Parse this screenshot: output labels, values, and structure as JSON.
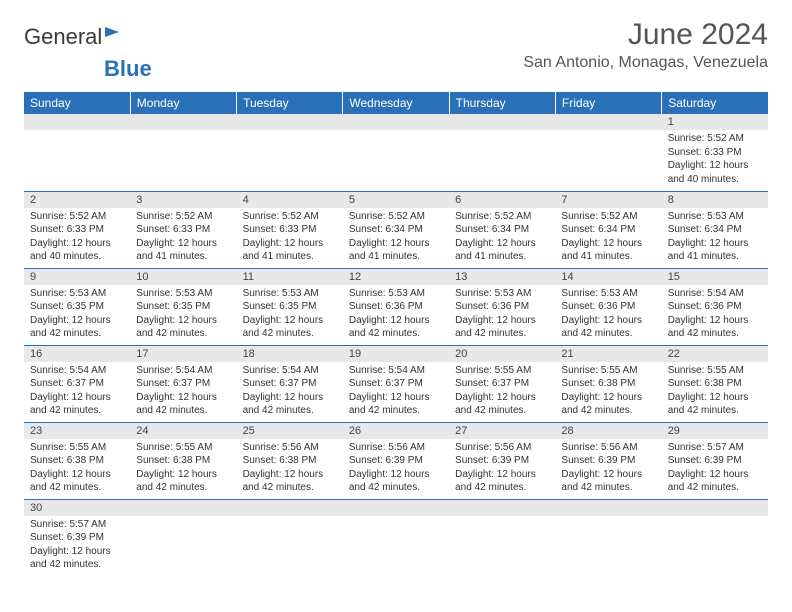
{
  "logo": {
    "text1": "General",
    "text2": "Blue"
  },
  "title": "June 2024",
  "location": "San Antonio, Monagas, Venezuela",
  "colors": {
    "header_bg": "#2a70b8",
    "header_text": "#ffffff",
    "daynum_bg": "#e8e8e8",
    "border": "#2a70b8",
    "text": "#333333",
    "title_text": "#555555"
  },
  "fonts": {
    "title_size": 30,
    "location_size": 16,
    "dayheader_size": 12,
    "daynum_size": 11,
    "dayinfo_size": 10
  },
  "day_headers": [
    "Sunday",
    "Monday",
    "Tuesday",
    "Wednesday",
    "Thursday",
    "Friday",
    "Saturday"
  ],
  "weeks": [
    [
      null,
      null,
      null,
      null,
      null,
      null,
      {
        "n": "1",
        "sunrise": "5:52 AM",
        "sunset": "6:33 PM",
        "daylight": "12 hours and 40 minutes."
      }
    ],
    [
      {
        "n": "2",
        "sunrise": "5:52 AM",
        "sunset": "6:33 PM",
        "daylight": "12 hours and 40 minutes."
      },
      {
        "n": "3",
        "sunrise": "5:52 AM",
        "sunset": "6:33 PM",
        "daylight": "12 hours and 41 minutes."
      },
      {
        "n": "4",
        "sunrise": "5:52 AM",
        "sunset": "6:33 PM",
        "daylight": "12 hours and 41 minutes."
      },
      {
        "n": "5",
        "sunrise": "5:52 AM",
        "sunset": "6:34 PM",
        "daylight": "12 hours and 41 minutes."
      },
      {
        "n": "6",
        "sunrise": "5:52 AM",
        "sunset": "6:34 PM",
        "daylight": "12 hours and 41 minutes."
      },
      {
        "n": "7",
        "sunrise": "5:52 AM",
        "sunset": "6:34 PM",
        "daylight": "12 hours and 41 minutes."
      },
      {
        "n": "8",
        "sunrise": "5:53 AM",
        "sunset": "6:34 PM",
        "daylight": "12 hours and 41 minutes."
      }
    ],
    [
      {
        "n": "9",
        "sunrise": "5:53 AM",
        "sunset": "6:35 PM",
        "daylight": "12 hours and 42 minutes."
      },
      {
        "n": "10",
        "sunrise": "5:53 AM",
        "sunset": "6:35 PM",
        "daylight": "12 hours and 42 minutes."
      },
      {
        "n": "11",
        "sunrise": "5:53 AM",
        "sunset": "6:35 PM",
        "daylight": "12 hours and 42 minutes."
      },
      {
        "n": "12",
        "sunrise": "5:53 AM",
        "sunset": "6:36 PM",
        "daylight": "12 hours and 42 minutes."
      },
      {
        "n": "13",
        "sunrise": "5:53 AM",
        "sunset": "6:36 PM",
        "daylight": "12 hours and 42 minutes."
      },
      {
        "n": "14",
        "sunrise": "5:53 AM",
        "sunset": "6:36 PM",
        "daylight": "12 hours and 42 minutes."
      },
      {
        "n": "15",
        "sunrise": "5:54 AM",
        "sunset": "6:36 PM",
        "daylight": "12 hours and 42 minutes."
      }
    ],
    [
      {
        "n": "16",
        "sunrise": "5:54 AM",
        "sunset": "6:37 PM",
        "daylight": "12 hours and 42 minutes."
      },
      {
        "n": "17",
        "sunrise": "5:54 AM",
        "sunset": "6:37 PM",
        "daylight": "12 hours and 42 minutes."
      },
      {
        "n": "18",
        "sunrise": "5:54 AM",
        "sunset": "6:37 PM",
        "daylight": "12 hours and 42 minutes."
      },
      {
        "n": "19",
        "sunrise": "5:54 AM",
        "sunset": "6:37 PM",
        "daylight": "12 hours and 42 minutes."
      },
      {
        "n": "20",
        "sunrise": "5:55 AM",
        "sunset": "6:37 PM",
        "daylight": "12 hours and 42 minutes."
      },
      {
        "n": "21",
        "sunrise": "5:55 AM",
        "sunset": "6:38 PM",
        "daylight": "12 hours and 42 minutes."
      },
      {
        "n": "22",
        "sunrise": "5:55 AM",
        "sunset": "6:38 PM",
        "daylight": "12 hours and 42 minutes."
      }
    ],
    [
      {
        "n": "23",
        "sunrise": "5:55 AM",
        "sunset": "6:38 PM",
        "daylight": "12 hours and 42 minutes."
      },
      {
        "n": "24",
        "sunrise": "5:55 AM",
        "sunset": "6:38 PM",
        "daylight": "12 hours and 42 minutes."
      },
      {
        "n": "25",
        "sunrise": "5:56 AM",
        "sunset": "6:38 PM",
        "daylight": "12 hours and 42 minutes."
      },
      {
        "n": "26",
        "sunrise": "5:56 AM",
        "sunset": "6:39 PM",
        "daylight": "12 hours and 42 minutes."
      },
      {
        "n": "27",
        "sunrise": "5:56 AM",
        "sunset": "6:39 PM",
        "daylight": "12 hours and 42 minutes."
      },
      {
        "n": "28",
        "sunrise": "5:56 AM",
        "sunset": "6:39 PM",
        "daylight": "12 hours and 42 minutes."
      },
      {
        "n": "29",
        "sunrise": "5:57 AM",
        "sunset": "6:39 PM",
        "daylight": "12 hours and 42 minutes."
      }
    ],
    [
      {
        "n": "30",
        "sunrise": "5:57 AM",
        "sunset": "6:39 PM",
        "daylight": "12 hours and 42 minutes."
      },
      null,
      null,
      null,
      null,
      null,
      null
    ]
  ],
  "labels": {
    "sunrise": "Sunrise:",
    "sunset": "Sunset:",
    "daylight": "Daylight:"
  }
}
